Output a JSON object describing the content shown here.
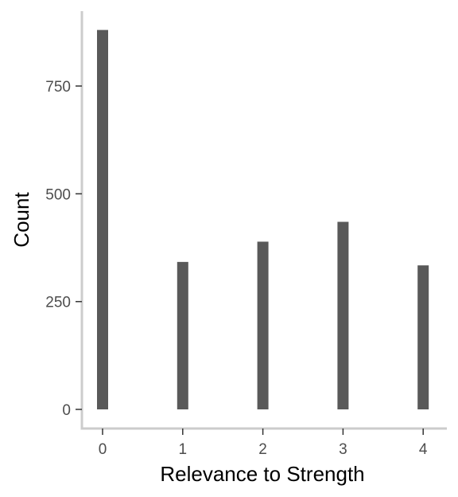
{
  "chart_data": {
    "type": "bar",
    "xlabel": "Relevance to Strength",
    "ylabel": "Count",
    "categories": [
      "0",
      "1",
      "2",
      "3",
      "4"
    ],
    "values": [
      880,
      342,
      389,
      435,
      334
    ],
    "x_ticks": [
      "0",
      "1",
      "2",
      "3",
      "4"
    ],
    "y_ticks": [
      "0",
      "250",
      "500",
      "750"
    ],
    "ylim": [
      0,
      880
    ],
    "grid": false,
    "legend": "none",
    "colors": {
      "bar": "#595959",
      "axis": "#cccccc",
      "tick_text": "#4d4d4d"
    }
  }
}
